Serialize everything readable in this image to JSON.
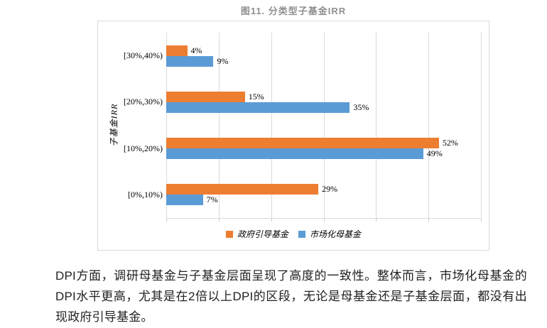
{
  "figure": {
    "title": "图11. 分类型子基金IRR"
  },
  "chart_data": {
    "type": "bar",
    "orientation": "horizontal",
    "title": "图11. 分类型子基金IRR",
    "ylabel": "子基金IRR",
    "xlabel": "",
    "categories": [
      "[30%,40%)",
      "[20%,30%)",
      "[10%,20%)",
      "[0%,10%)"
    ],
    "series": [
      {
        "name": "政府引导基金",
        "color": "#ED7D31",
        "values": [
          4,
          15,
          52,
          29
        ]
      },
      {
        "name": "市场化母基金",
        "color": "#5B9BD5",
        "values": [
          9,
          35,
          49,
          7
        ]
      }
    ],
    "xlim": [
      0,
      60
    ],
    "grid_interval": 10,
    "value_suffix": "%",
    "data_labels_visible": true,
    "x_tick_labels_visible": false,
    "legend_position": "bottom",
    "grid_color": "#D9D9D9"
  },
  "paragraph": {
    "text": "DPI方面，调研母基金与子基金层面呈现了高度的一致性。整体而言，市场化母基金的DPI水平更高，尤其是在2倍以上DPI的区段，无论是母基金还是子基金层面，都没有出现政府引导基金。"
  }
}
